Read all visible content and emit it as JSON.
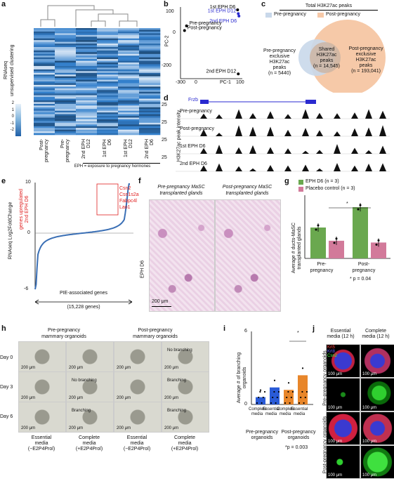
{
  "panels": {
    "a": "a",
    "b": "b",
    "c": "c",
    "d": "d",
    "e": "e",
    "f": "f",
    "g": "g",
    "h": "h",
    "i": "i",
    "j": "j"
  },
  "a": {
    "ylabel": "RNAseq\nunsupervised clustering",
    "columns": [
      "Post-pregnancy",
      "Pre-pregnancy",
      "2nd EPH D12",
      "1st EPH D6",
      "1st EPH D12",
      "2nd EPH D6"
    ],
    "colorbar_ticks": [
      "2",
      "1",
      "0",
      "-1",
      "-2"
    ],
    "footnote": "EPH = exposure to pregnancy hormones"
  },
  "b": {
    "xlabel": "PC-1",
    "ylabel": "PC-2",
    "xticks": [
      "-300",
      "0",
      "100"
    ],
    "yticks": [
      "100",
      "0",
      "-200"
    ],
    "chart_data": {
      "type": "scatter",
      "xlabel": "PC-1",
      "ylabel": "PC-2",
      "points": [
        {
          "label": "1st EPH D6",
          "x": 95,
          "y": 105,
          "color": "#000000"
        },
        {
          "label": "1st EPH D12",
          "x": 100,
          "y": 85,
          "color": "#2a2ad0"
        },
        {
          "label": "2nd EPH D6",
          "x": 105,
          "y": 72,
          "color": "#2a2ad0"
        },
        {
          "label": "Pre-pregnancy",
          "x": -285,
          "y": 20,
          "color": "#000000"
        },
        {
          "label": "Post-pregnancy",
          "x": -300,
          "y": -5,
          "color": "#000000"
        },
        {
          "label": "2nd EPH D12",
          "x": 100,
          "y": -235,
          "color": "#000000"
        }
      ]
    }
  },
  "c": {
    "title": "Total H3K27ac peaks",
    "legend_pre": "Pre-pregnancy",
    "legend_post": "Post-pregnancy",
    "left_label": [
      "Pre-pregnancy",
      "exclusive",
      "H3K27ac",
      "peaks",
      "(n = 5440)"
    ],
    "shared_label": [
      "Shared",
      "H3K27ac",
      "peaks",
      "(n = 14,545)"
    ],
    "right_label": [
      "Post-pregnancy",
      "exclusive",
      "H3K27ac",
      "peaks",
      "(n = 193,041)"
    ],
    "colors": {
      "pre": "#c9d8ea",
      "post": "#f6c9a8",
      "shared": "#cdb5a3"
    }
  },
  "d": {
    "gene": "Frzb",
    "ylabel": "H3K27ac peak intensity",
    "tracks": [
      {
        "max": "25",
        "label": "Pre-pregnancy"
      },
      {
        "max": "25",
        "label": "Post-pregnancy"
      },
      {
        "max": "25",
        "label": "1st EPH D6"
      },
      {
        "max": "25",
        "label": "2nd EPH D6"
      }
    ]
  },
  "e": {
    "ylabel": "RNAseq Log2FoldChange",
    "ylabel_red": "genes upregulated\n2nd EPH D6",
    "yticks": [
      "10",
      "0",
      "-6"
    ],
    "genes": [
      "Csn2",
      "Csn1s2a",
      "Fabpc4l",
      "Lao1"
    ],
    "xlabel": "PIE-associated genes",
    "xlabel2": "(15,228 genes)"
  },
  "f": {
    "title_left": "Pre-pregnancy MaSC\ntransplanted glands",
    "title_right": "Post-pregnancy MaSC\ntransplanted glands",
    "row_label": "EPH D6",
    "scale": "200 μm"
  },
  "g": {
    "legend": [
      {
        "label": "EPH D6 (n = 3)",
        "color": "#6aa84f"
      },
      {
        "label": "Placebo control (n = 3)",
        "color": "#d27a9a"
      }
    ],
    "ylabel": "Average # ducts-MaSC\ntransplanted glands",
    "groups": [
      "Pre-\npregnancy",
      "Post-\npregnancy"
    ],
    "pvalue": "* p = 0.04",
    "star": "*",
    "chart_data": {
      "type": "bar",
      "categories": [
        "Pre-pregnancy",
        "Post-pregnancy"
      ],
      "series": [
        {
          "name": "EPH D6",
          "values": [
            3.5,
            5.8
          ]
        },
        {
          "name": "Placebo control",
          "values": [
            2.0,
            1.8
          ]
        }
      ]
    }
  },
  "h": {
    "title_left": "Pre-pregnancy\nmammary organoids",
    "title_right": "Post-pregnancy\nmammary organoids",
    "rows": [
      "Day 0",
      "Day 3",
      "Day 6"
    ],
    "scale": "200 μm",
    "annotations": [
      "No branching",
      "No branching",
      "Branching",
      "Branching",
      "Branching"
    ],
    "cols": [
      "Essential\nmedia\n(−E2P4Prol)",
      "Complete\nmedia\n(+E2P4Prol)",
      "Essential\nmedia\n(−E2P4Prol)",
      "Complete\nmedia\n(+E2P4Prol)"
    ]
  },
  "i": {
    "ylabel": "Average # of branching\norganoids",
    "yticks": [
      "6",
      "0"
    ],
    "cats": [
      "Complete\nmedia",
      "Essential\nmedia",
      "Complete\nmedia",
      "Essential\nmedia"
    ],
    "group1": "Pre-pregnancy\norganoids",
    "group2": "Post-pregnancy\norganoids",
    "pvalue": "*p = 0.003",
    "star": "*",
    "chart_data": {
      "type": "bar",
      "categories": [
        "Complete media",
        "Essential media",
        "Complete media",
        "Essential media"
      ],
      "values": [
        0.6,
        1.4,
        1.2,
        2.4
      ],
      "ylim": [
        0,
        6
      ]
    }
  },
  "j": {
    "col_left": "Essential\nmedia (12 h)",
    "col_right": "Complete\nmedia (12 h)",
    "legend": [
      "Krt5",
      "Krt8",
      "Csn2"
    ],
    "rows": [
      "Pre-pregnancy organoids",
      "Post-pregnancy organoids"
    ],
    "scale": "100 μm"
  }
}
